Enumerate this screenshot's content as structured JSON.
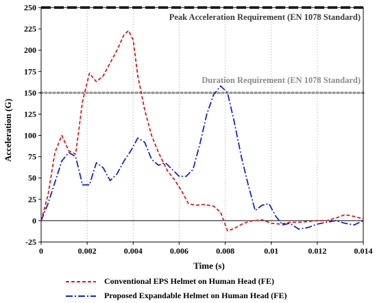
{
  "chart_data": {
    "type": "line",
    "xlabel": "Time (s)",
    "ylabel": "Acceleration (G)",
    "xlim": [
      0,
      0.014
    ],
    "ylim": [
      -25,
      250
    ],
    "xticks": [
      0,
      0.002,
      0.004,
      0.006,
      0.008,
      0.01,
      0.012,
      0.014
    ],
    "xtick_labels": [
      "0",
      "0.002",
      "0.004",
      "0.006",
      "0.008",
      "0.01",
      "0.012",
      "0.014"
    ],
    "yticks": [
      -25,
      0,
      25,
      50,
      75,
      100,
      125,
      150,
      175,
      200,
      225,
      250
    ],
    "ytick_labels": [
      "-25",
      "0",
      "25",
      "50",
      "75",
      "100",
      "125",
      "150",
      "175",
      "200",
      "225",
      "250"
    ],
    "grid": "vertical",
    "reference_lines": [
      {
        "label": "Peak Acceleration Requirement (EN 1078 Standard)",
        "y": 250,
        "color": "#333333",
        "style": "dashed"
      },
      {
        "label": "Duration Requirement (EN 1078 Standard)",
        "y": 150,
        "color": "#999999",
        "style": "dotted"
      }
    ],
    "series": [
      {
        "name": "Conventional EPS Helmet on Human Head (FE)",
        "color": "#e3141b",
        "style": "dashed",
        "x": [
          0,
          0.0003,
          0.0006,
          0.0009,
          0.0012,
          0.0015,
          0.0018,
          0.0021,
          0.0024,
          0.0027,
          0.003,
          0.0033,
          0.0036,
          0.0038,
          0.004,
          0.0042,
          0.0045,
          0.0048,
          0.0051,
          0.0055,
          0.0058,
          0.0061,
          0.0064,
          0.0067,
          0.0071,
          0.0075,
          0.0078,
          0.0081,
          0.0084,
          0.0088,
          0.0092,
          0.0096,
          0.01,
          0.0104,
          0.0108,
          0.0112,
          0.0116,
          0.012,
          0.0124,
          0.0128,
          0.0132,
          0.0136,
          0.014
        ],
        "y": [
          0,
          30,
          80,
          100,
          82,
          78,
          140,
          173,
          163,
          170,
          185,
          200,
          218,
          223,
          212,
          170,
          130,
          100,
          80,
          58,
          48,
          35,
          20,
          18,
          19,
          17,
          10,
          -12,
          -9,
          -3,
          0,
          1,
          -3,
          -4,
          -2,
          -2,
          -1,
          0,
          0,
          3,
          7,
          5,
          2
        ]
      },
      {
        "name": "Proposed Expandable Helmet on Human Head (FE)",
        "color": "#1024c8",
        "style": "dashdot",
        "x": [
          0,
          0.0003,
          0.0006,
          0.0009,
          0.0012,
          0.0015,
          0.0018,
          0.0021,
          0.0024,
          0.0027,
          0.003,
          0.0033,
          0.0036,
          0.0039,
          0.0042,
          0.0045,
          0.0048,
          0.0051,
          0.0054,
          0.0057,
          0.006,
          0.0063,
          0.0066,
          0.0069,
          0.0072,
          0.0075,
          0.0078,
          0.0081,
          0.0084,
          0.0087,
          0.009,
          0.0093,
          0.0096,
          0.0099,
          0.0102,
          0.0105,
          0.0108,
          0.0112,
          0.0116,
          0.012,
          0.0124,
          0.0128,
          0.0132,
          0.0136,
          0.014
        ],
        "y": [
          0,
          20,
          45,
          70,
          80,
          75,
          42,
          42,
          68,
          62,
          47,
          55,
          70,
          82,
          97,
          92,
          72,
          65,
          68,
          60,
          52,
          52,
          60,
          90,
          125,
          148,
          158,
          150,
          115,
          75,
          42,
          12,
          18,
          20,
          5,
          -5,
          -3,
          -10,
          -8,
          -4,
          -2,
          0,
          -3,
          -5,
          0
        ]
      }
    ]
  }
}
